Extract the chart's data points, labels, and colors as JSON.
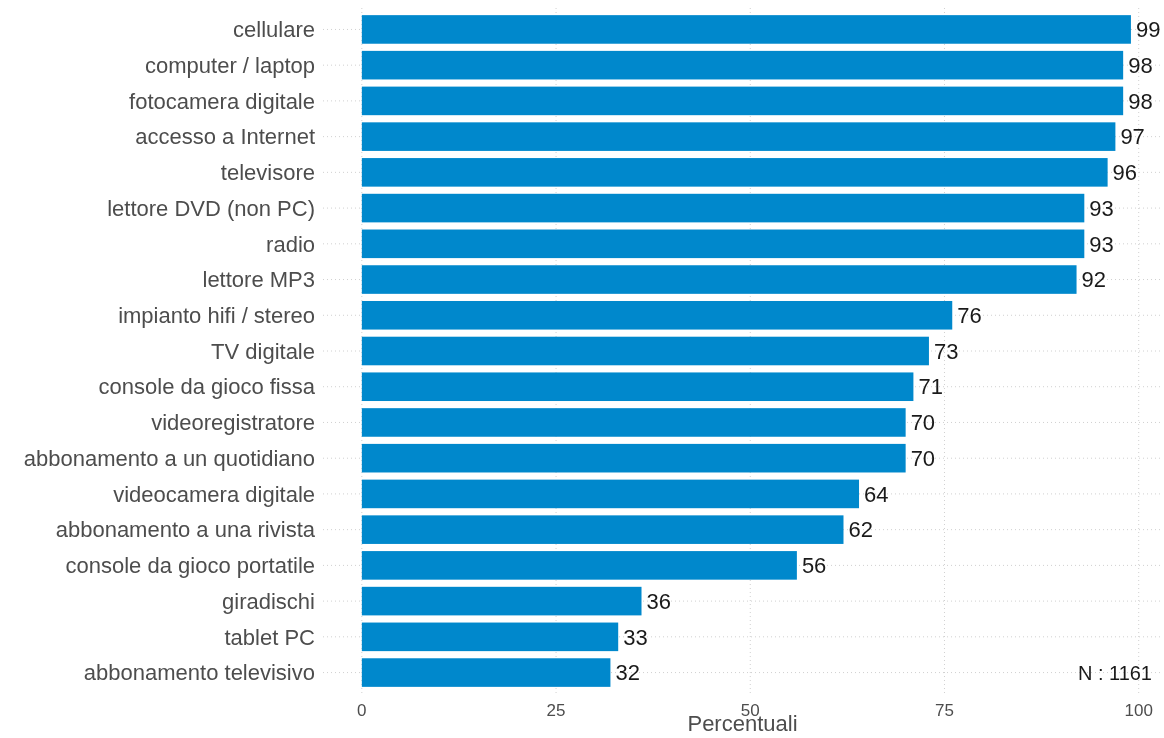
{
  "chart_data": {
    "type": "bar",
    "orientation": "horizontal",
    "categories": [
      "cellulare",
      "computer / laptop",
      "fotocamera digitale",
      "accesso a Internet",
      "televisore",
      "lettore DVD (non PC)",
      "radio",
      "lettore MP3",
      "impianto hifi / stereo",
      "TV digitale",
      "console da gioco fissa",
      "videoregistratore",
      "abbonamento a un quotidiano",
      "videocamera digitale",
      "abbonamento a una rivista",
      "console da gioco portatile",
      "giradischi",
      "tablet PC",
      "abbonamento televisivo"
    ],
    "values": [
      99,
      98,
      98,
      97,
      96,
      93,
      93,
      92,
      76,
      73,
      71,
      70,
      70,
      64,
      62,
      56,
      36,
      33,
      32
    ],
    "color": "#0088cc",
    "xlabel": "Percentuali",
    "xlim": [
      -5,
      103
    ],
    "xticks": [
      0,
      25,
      50,
      75,
      100
    ],
    "grid": true,
    "data_labels": true,
    "annotations": [
      "N : 1161"
    ]
  }
}
